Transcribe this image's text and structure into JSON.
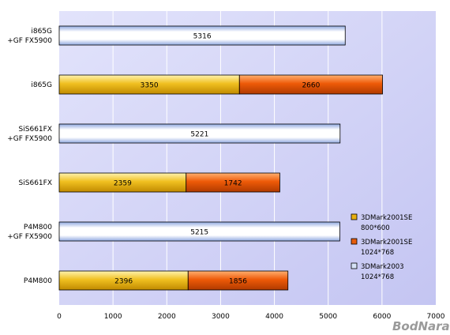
{
  "chart_data": {
    "type": "bar",
    "orientation": "horizontal",
    "stacked": true,
    "xlim": [
      0,
      7000
    ],
    "x_ticks": [
      0,
      1000,
      2000,
      3000,
      4000,
      5000,
      6000,
      7000
    ],
    "grid": true,
    "legend_position": "right",
    "categories": [
      [
        "i865G",
        "+GF FX5900"
      ],
      [
        "i865G"
      ],
      [
        "SiS661FX",
        "+GF FX5900"
      ],
      [
        "SiS661FX"
      ],
      [
        "P4M800",
        "+GF FX5900"
      ],
      [
        "P4M800"
      ]
    ],
    "series": [
      {
        "name": [
          "3DMark2001SE",
          "800*600"
        ],
        "color": "#e8b010",
        "values": [
          null,
          3350,
          null,
          2359,
          null,
          2396
        ]
      },
      {
        "name": [
          "3DMark2001SE",
          "1024*768"
        ],
        "color": "#e65c0c",
        "values": [
          null,
          2660,
          null,
          1742,
          null,
          1856
        ]
      },
      {
        "name": [
          "3DMark2003",
          "1024*768"
        ],
        "color": "#d6e2f6",
        "values": [
          5316,
          null,
          5221,
          null,
          5215,
          null
        ]
      }
    ]
  },
  "colors": {
    "plot_bg": "#cfd0f6",
    "grid": "#ffffff",
    "watermark": "#9a9a9a"
  },
  "watermark": "BodNara"
}
